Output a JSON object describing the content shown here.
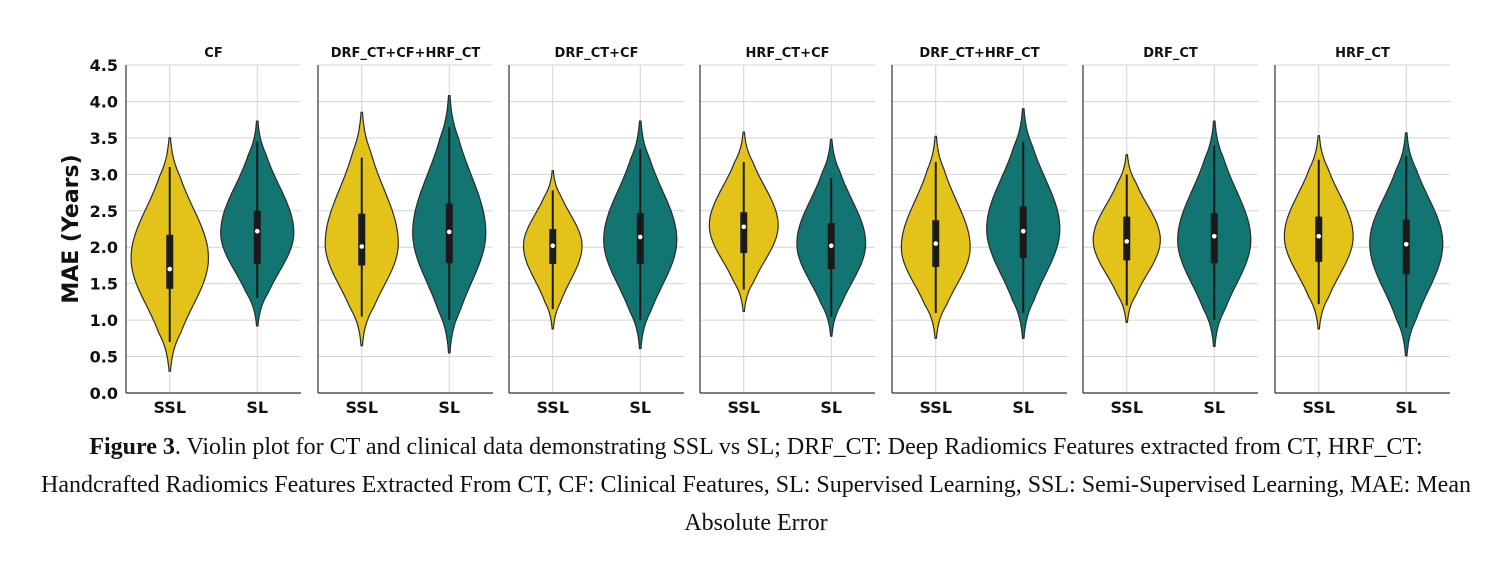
{
  "chart_data": {
    "type": "violin",
    "ylabel": "MAE (Years)",
    "ylim": [
      0,
      4.5
    ],
    "yticks": [
      "0.0",
      "0.5",
      "1.0",
      "1.5",
      "2.0",
      "2.5",
      "3.0",
      "3.5",
      "4.0",
      "4.5"
    ],
    "categories": [
      "SSL",
      "SL"
    ],
    "grid": true,
    "colors": {
      "SSL": "#E3C21A",
      "SL": "#137572"
    },
    "panels": [
      {
        "title": "CF",
        "SSL": {
          "min": 0.3,
          "max": 3.5,
          "q1": 1.43,
          "median": 1.7,
          "q3": 2.17,
          "wlo": 0.7,
          "whi": 3.1,
          "mode": 1.85,
          "width": 0.9
        },
        "SL": {
          "min": 0.92,
          "max": 3.73,
          "q1": 1.77,
          "median": 2.22,
          "q3": 2.5,
          "wlo": 1.3,
          "whi": 3.45,
          "mode": 2.2,
          "width": 0.85
        }
      },
      {
        "title": "DRF_CT+CF+HRF_CT",
        "SSL": {
          "min": 0.65,
          "max": 3.85,
          "q1": 1.75,
          "median": 2.01,
          "q3": 2.46,
          "wlo": 1.05,
          "whi": 3.23,
          "mode": 2.05,
          "width": 0.85
        },
        "SL": {
          "min": 0.55,
          "max": 4.08,
          "q1": 1.78,
          "median": 2.21,
          "q3": 2.6,
          "wlo": 1.0,
          "whi": 3.65,
          "mode": 2.2,
          "width": 0.85
        }
      },
      {
        "title": "DRF_CT+CF",
        "SSL": {
          "min": 0.88,
          "max": 3.05,
          "q1": 1.77,
          "median": 2.02,
          "q3": 2.25,
          "wlo": 1.15,
          "whi": 2.78,
          "mode": 2.02,
          "width": 0.68
        },
        "SL": {
          "min": 0.61,
          "max": 3.73,
          "q1": 1.77,
          "median": 2.14,
          "q3": 2.47,
          "wlo": 1.0,
          "whi": 3.35,
          "mode": 2.1,
          "width": 0.85
        }
      },
      {
        "title": "HRF_CT+CF",
        "SSL": {
          "min": 1.12,
          "max": 3.58,
          "q1": 1.92,
          "median": 2.28,
          "q3": 2.48,
          "wlo": 1.42,
          "whi": 3.17,
          "mode": 2.3,
          "width": 0.8
        },
        "SL": {
          "min": 0.78,
          "max": 3.48,
          "q1": 1.7,
          "median": 2.02,
          "q3": 2.33,
          "wlo": 1.05,
          "whi": 2.95,
          "mode": 2.05,
          "width": 0.8
        }
      },
      {
        "title": "DRF_CT+HRF_CT",
        "SSL": {
          "min": 0.75,
          "max": 3.52,
          "q1": 1.73,
          "median": 2.05,
          "q3": 2.37,
          "wlo": 1.1,
          "whi": 3.17,
          "mode": 2.0,
          "width": 0.8
        },
        "SL": {
          "min": 0.75,
          "max": 3.9,
          "q1": 1.85,
          "median": 2.22,
          "q3": 2.56,
          "wlo": 1.1,
          "whi": 3.45,
          "mode": 2.25,
          "width": 0.85
        }
      },
      {
        "title": "DRF_CT",
        "SSL": {
          "min": 0.97,
          "max": 3.27,
          "q1": 1.82,
          "median": 2.08,
          "q3": 2.42,
          "wlo": 1.2,
          "whi": 3.0,
          "mode": 2.1,
          "width": 0.78
        },
        "SL": {
          "min": 0.64,
          "max": 3.73,
          "q1": 1.78,
          "median": 2.15,
          "q3": 2.47,
          "wlo": 1.0,
          "whi": 3.4,
          "mode": 2.1,
          "width": 0.85
        }
      },
      {
        "title": "HRF_CT",
        "SSL": {
          "min": 0.88,
          "max": 3.53,
          "q1": 1.8,
          "median": 2.15,
          "q3": 2.42,
          "wlo": 1.22,
          "whi": 3.2,
          "mode": 2.15,
          "width": 0.8
        },
        "SL": {
          "min": 0.51,
          "max": 3.57,
          "q1": 1.63,
          "median": 2.04,
          "q3": 2.38,
          "wlo": 0.9,
          "whi": 3.25,
          "mode": 2.05,
          "width": 0.85
        }
      }
    ]
  },
  "caption": {
    "label": "Figure 3",
    "text": ". Violin plot for CT and clinical data demonstrating SSL vs SL; DRF_CT: Deep Radiomics Features extracted from CT, HRF_CT: Handcrafted Radiomics Features Extracted From CT, CF: Clinical Features, SL: Supervised Learning, SSL: Semi-Supervised Learning, MAE: Mean Absolute Error"
  }
}
